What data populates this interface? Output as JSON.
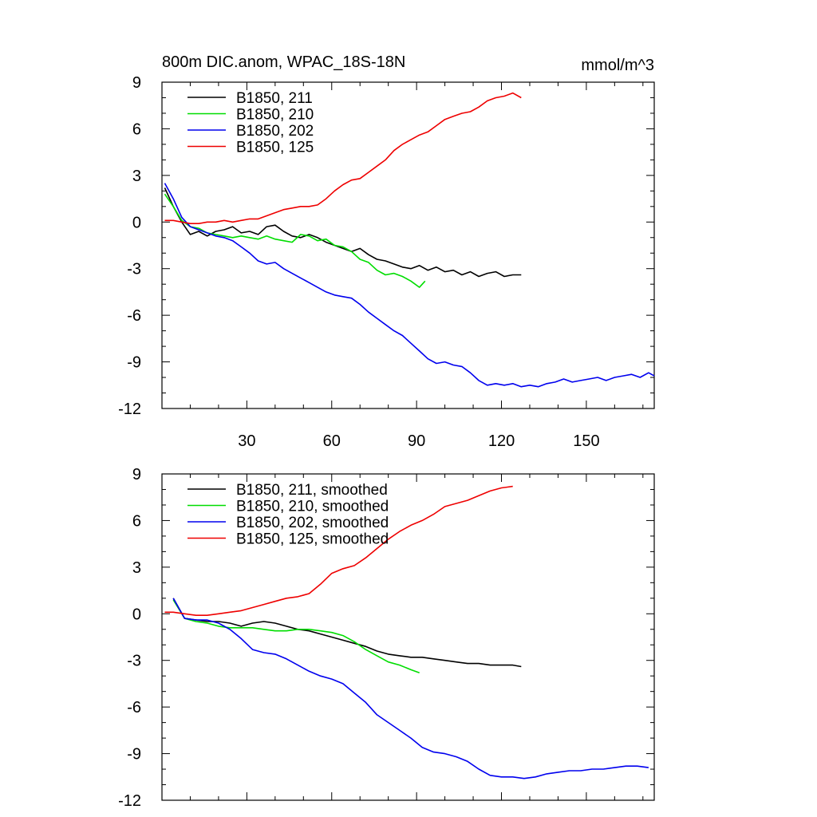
{
  "header": {
    "title": "800m DIC.anom, WPAC_18S-18N",
    "units": "mmol/m^3"
  },
  "colors": {
    "s211": "#000000",
    "s210": "#00dd00",
    "s202": "#0000ee",
    "s125": "#ee0000"
  },
  "chart_data": [
    {
      "type": "line",
      "title": "800m DIC.anom, WPAC_18S-18N",
      "xlim": [
        0,
        174
      ],
      "ylim": [
        -12,
        9
      ],
      "xticks": [
        30,
        60,
        90,
        120,
        150
      ],
      "xtick_labels": [
        "30",
        "60",
        "90",
        "120",
        "150"
      ],
      "yticks": [
        -12,
        -9,
        -6,
        -3,
        0,
        3,
        6,
        9
      ],
      "ytick_labels": [
        "-12",
        "-9",
        "-6",
        "-3",
        "0",
        "3",
        "6",
        "9"
      ],
      "grid": false,
      "legend": "top-left",
      "series": [
        {
          "name": "B1850, 211",
          "color": "#000000",
          "x": [
            1,
            4,
            7,
            10,
            13,
            16,
            19,
            22,
            25,
            28,
            31,
            34,
            37,
            40,
            43,
            46,
            49,
            52,
            55,
            58,
            61,
            64,
            67,
            70,
            73,
            76,
            79,
            82,
            85,
            88,
            91,
            94,
            97,
            100,
            103,
            106,
            109,
            112,
            115,
            118,
            121,
            124,
            127
          ],
          "y": [
            2.2,
            1.0,
            0.0,
            -0.8,
            -0.6,
            -0.9,
            -0.6,
            -0.5,
            -0.3,
            -0.7,
            -0.6,
            -0.8,
            -0.3,
            -0.2,
            -0.6,
            -0.9,
            -1.0,
            -0.8,
            -1.0,
            -1.3,
            -1.5,
            -1.7,
            -1.9,
            -1.7,
            -2.1,
            -2.4,
            -2.5,
            -2.7,
            -2.9,
            -3.0,
            -2.8,
            -3.1,
            -2.9,
            -3.2,
            -3.1,
            -3.4,
            -3.2,
            -3.5,
            -3.3,
            -3.2,
            -3.5,
            -3.4,
            -3.4
          ]
        },
        {
          "name": "B1850, 210",
          "color": "#00dd00",
          "x": [
            1,
            4,
            7,
            10,
            13,
            16,
            19,
            22,
            25,
            28,
            31,
            34,
            37,
            40,
            43,
            46,
            49,
            52,
            55,
            58,
            61,
            64,
            67,
            70,
            73,
            76,
            79,
            82,
            85,
            88,
            91,
            93
          ],
          "y": [
            1.8,
            1.0,
            0.1,
            -0.3,
            -0.4,
            -0.7,
            -0.8,
            -0.9,
            -1.0,
            -0.9,
            -1.0,
            -1.1,
            -0.9,
            -1.1,
            -1.2,
            -1.3,
            -0.8,
            -0.9,
            -1.2,
            -1.1,
            -1.5,
            -1.6,
            -1.9,
            -2.4,
            -2.6,
            -3.1,
            -3.4,
            -3.3,
            -3.5,
            -3.8,
            -4.2,
            -3.8
          ]
        },
        {
          "name": "B1850, 202",
          "color": "#0000ee",
          "x": [
            1,
            4,
            7,
            10,
            13,
            16,
            19,
            22,
            25,
            28,
            31,
            34,
            37,
            40,
            43,
            46,
            49,
            52,
            55,
            58,
            61,
            64,
            67,
            70,
            73,
            76,
            79,
            82,
            85,
            88,
            91,
            94,
            97,
            100,
            103,
            106,
            109,
            112,
            115,
            118,
            121,
            124,
            127,
            130,
            133,
            136,
            139,
            142,
            145,
            148,
            151,
            154,
            157,
            160,
            163,
            166,
            169,
            172,
            174
          ],
          "y": [
            2.5,
            1.5,
            0.3,
            -0.3,
            -0.5,
            -0.7,
            -0.9,
            -1.0,
            -1.2,
            -1.6,
            -2.0,
            -2.5,
            -2.7,
            -2.6,
            -3.0,
            -3.3,
            -3.6,
            -3.9,
            -4.2,
            -4.5,
            -4.7,
            -4.8,
            -4.9,
            -5.3,
            -5.8,
            -6.2,
            -6.6,
            -7.0,
            -7.3,
            -7.8,
            -8.3,
            -8.8,
            -9.1,
            -9.0,
            -9.2,
            -9.3,
            -9.7,
            -10.2,
            -10.5,
            -10.4,
            -10.5,
            -10.4,
            -10.6,
            -10.5,
            -10.6,
            -10.4,
            -10.3,
            -10.1,
            -10.3,
            -10.2,
            -10.1,
            -10.0,
            -10.2,
            -10.0,
            -9.9,
            -9.8,
            -10.0,
            -9.7,
            -9.9
          ]
        },
        {
          "name": "B1850, 125",
          "color": "#ee0000",
          "x": [
            1,
            4,
            7,
            10,
            13,
            16,
            19,
            22,
            25,
            28,
            31,
            34,
            37,
            40,
            43,
            46,
            49,
            52,
            55,
            58,
            61,
            64,
            67,
            70,
            73,
            76,
            79,
            82,
            85,
            88,
            91,
            94,
            97,
            100,
            103,
            106,
            109,
            112,
            115,
            118,
            121,
            124,
            127
          ],
          "y": [
            0.1,
            0.1,
            0.0,
            -0.1,
            -0.1,
            0.0,
            0.0,
            0.1,
            0.0,
            0.1,
            0.2,
            0.2,
            0.4,
            0.6,
            0.8,
            0.9,
            1.0,
            1.0,
            1.1,
            1.5,
            2.0,
            2.4,
            2.7,
            2.8,
            3.2,
            3.6,
            4.0,
            4.6,
            5.0,
            5.3,
            5.6,
            5.8,
            6.2,
            6.6,
            6.8,
            7.0,
            7.1,
            7.4,
            7.8,
            8.0,
            8.1,
            8.3,
            8.0
          ]
        }
      ]
    },
    {
      "type": "line",
      "xlim": [
        0,
        174
      ],
      "ylim": [
        -12,
        9
      ],
      "xticks": [
        30,
        60,
        90,
        120,
        150
      ],
      "yticks": [
        -12,
        -9,
        -6,
        -3,
        0,
        3,
        6,
        9
      ],
      "ytick_labels": [
        "-12",
        "-9",
        "-6",
        "-3",
        "0",
        "3",
        "6",
        "9"
      ],
      "grid": false,
      "legend": "top-left",
      "series": [
        {
          "name": "B1850, 211, smoothed",
          "color": "#000000",
          "x": [
            4,
            8,
            12,
            16,
            20,
            24,
            28,
            32,
            36,
            40,
            44,
            48,
            52,
            56,
            60,
            64,
            68,
            72,
            76,
            80,
            84,
            88,
            92,
            96,
            100,
            104,
            108,
            112,
            116,
            120,
            124,
            127
          ],
          "y": [
            1.0,
            -0.3,
            -0.4,
            -0.5,
            -0.5,
            -0.6,
            -0.8,
            -0.6,
            -0.5,
            -0.6,
            -0.8,
            -1.0,
            -1.1,
            -1.3,
            -1.5,
            -1.7,
            -1.9,
            -2.1,
            -2.4,
            -2.6,
            -2.7,
            -2.8,
            -2.8,
            -2.9,
            -3.0,
            -3.1,
            -3.2,
            -3.2,
            -3.3,
            -3.3,
            -3.3,
            -3.4
          ]
        },
        {
          "name": "B1850, 210, smoothed",
          "color": "#00dd00",
          "x": [
            4,
            8,
            12,
            16,
            20,
            24,
            28,
            32,
            36,
            40,
            44,
            48,
            52,
            56,
            60,
            64,
            68,
            72,
            76,
            80,
            84,
            88,
            91
          ],
          "y": [
            0.9,
            -0.3,
            -0.5,
            -0.6,
            -0.8,
            -0.9,
            -0.9,
            -0.9,
            -1.0,
            -1.1,
            -1.1,
            -1.0,
            -1.0,
            -1.1,
            -1.2,
            -1.4,
            -1.8,
            -2.3,
            -2.7,
            -3.1,
            -3.3,
            -3.6,
            -3.8
          ]
        },
        {
          "name": "B1850, 202, smoothed",
          "color": "#0000ee",
          "x": [
            4,
            8,
            12,
            16,
            20,
            24,
            28,
            32,
            36,
            40,
            44,
            48,
            52,
            56,
            60,
            64,
            68,
            72,
            76,
            80,
            84,
            88,
            92,
            96,
            100,
            104,
            108,
            112,
            116,
            120,
            124,
            128,
            132,
            136,
            140,
            144,
            148,
            152,
            156,
            160,
            164,
            168,
            172
          ],
          "y": [
            1.0,
            -0.3,
            -0.4,
            -0.4,
            -0.6,
            -1.0,
            -1.6,
            -2.3,
            -2.5,
            -2.6,
            -2.9,
            -3.3,
            -3.7,
            -4.0,
            -4.2,
            -4.5,
            -5.1,
            -5.7,
            -6.5,
            -7.0,
            -7.5,
            -8.0,
            -8.6,
            -8.9,
            -9.0,
            -9.2,
            -9.5,
            -10.0,
            -10.4,
            -10.5,
            -10.5,
            -10.6,
            -10.5,
            -10.3,
            -10.2,
            -10.1,
            -10.1,
            -10.0,
            -10.0,
            -9.9,
            -9.8,
            -9.8,
            -9.9
          ]
        },
        {
          "name": "B1850, 125, smoothed",
          "color": "#ee0000",
          "x": [
            1,
            4,
            8,
            12,
            16,
            20,
            24,
            28,
            32,
            36,
            40,
            44,
            48,
            52,
            56,
            60,
            64,
            68,
            72,
            76,
            80,
            84,
            88,
            92,
            96,
            100,
            104,
            108,
            112,
            116,
            120,
            124
          ],
          "y": [
            0.1,
            0.1,
            0.0,
            -0.1,
            -0.1,
            0.0,
            0.1,
            0.2,
            0.4,
            0.6,
            0.8,
            1.0,
            1.1,
            1.3,
            1.9,
            2.6,
            2.9,
            3.1,
            3.6,
            4.2,
            4.8,
            5.3,
            5.7,
            6.0,
            6.4,
            6.9,
            7.1,
            7.3,
            7.6,
            7.9,
            8.1,
            8.2
          ]
        }
      ]
    }
  ]
}
